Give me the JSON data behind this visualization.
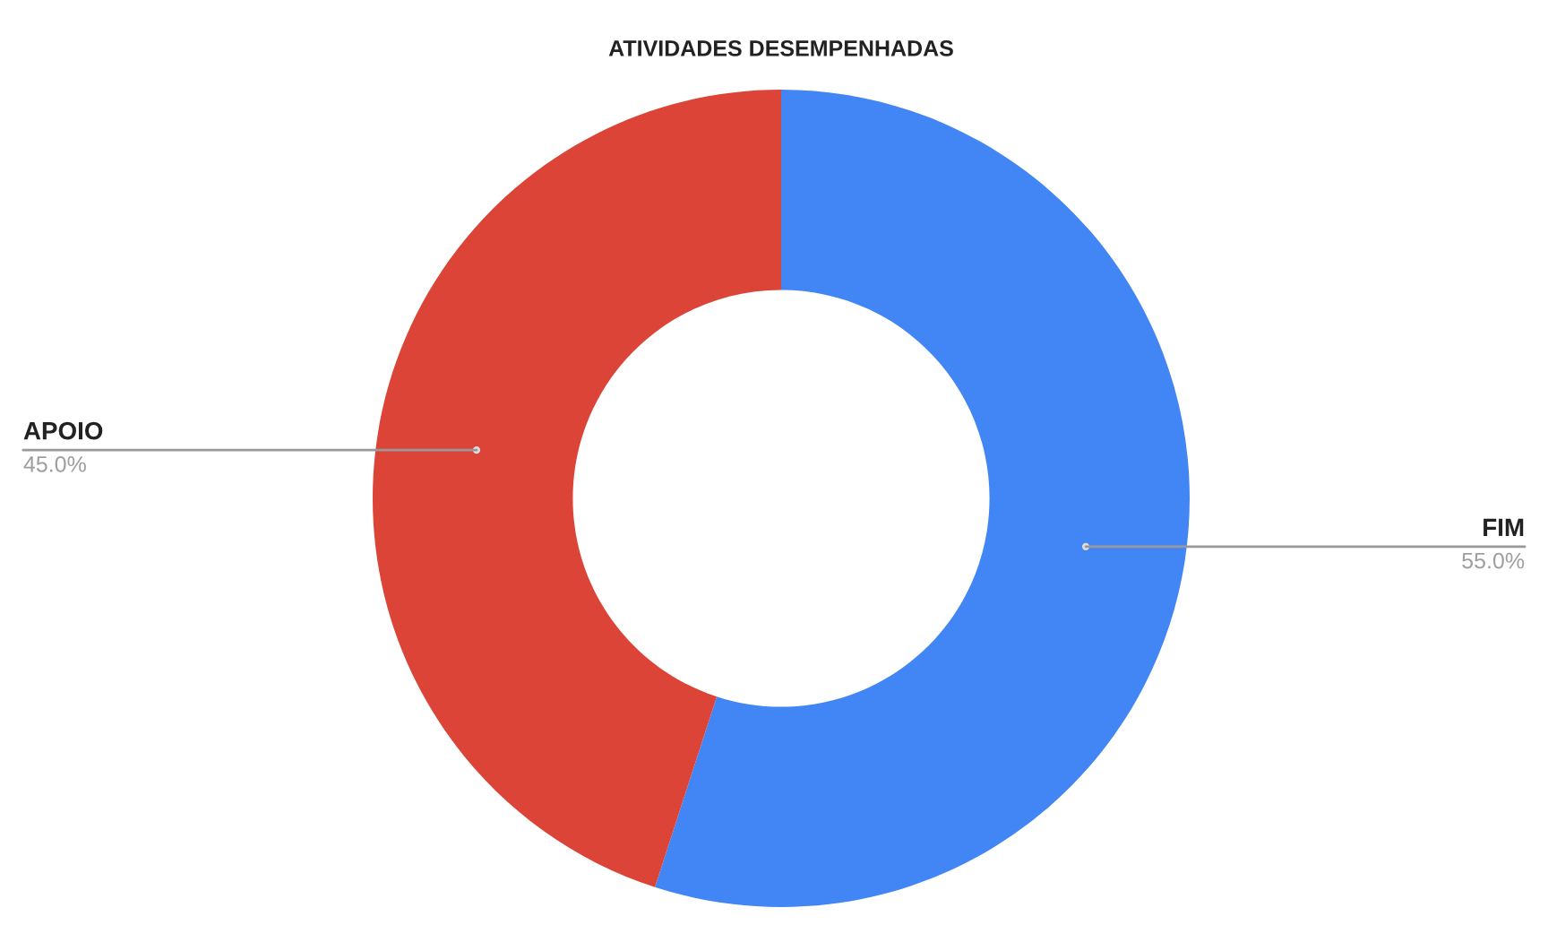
{
  "chart_data": {
    "type": "donut",
    "title": "ATIVIDADES DESEMPENHADAS",
    "categories": [
      "FIM",
      "APOIO"
    ],
    "values": [
      55,
      45
    ],
    "value_labels": [
      "55.0%",
      "45.0%"
    ],
    "colors": [
      "#4285f4",
      "#db4437"
    ],
    "legend": false
  }
}
